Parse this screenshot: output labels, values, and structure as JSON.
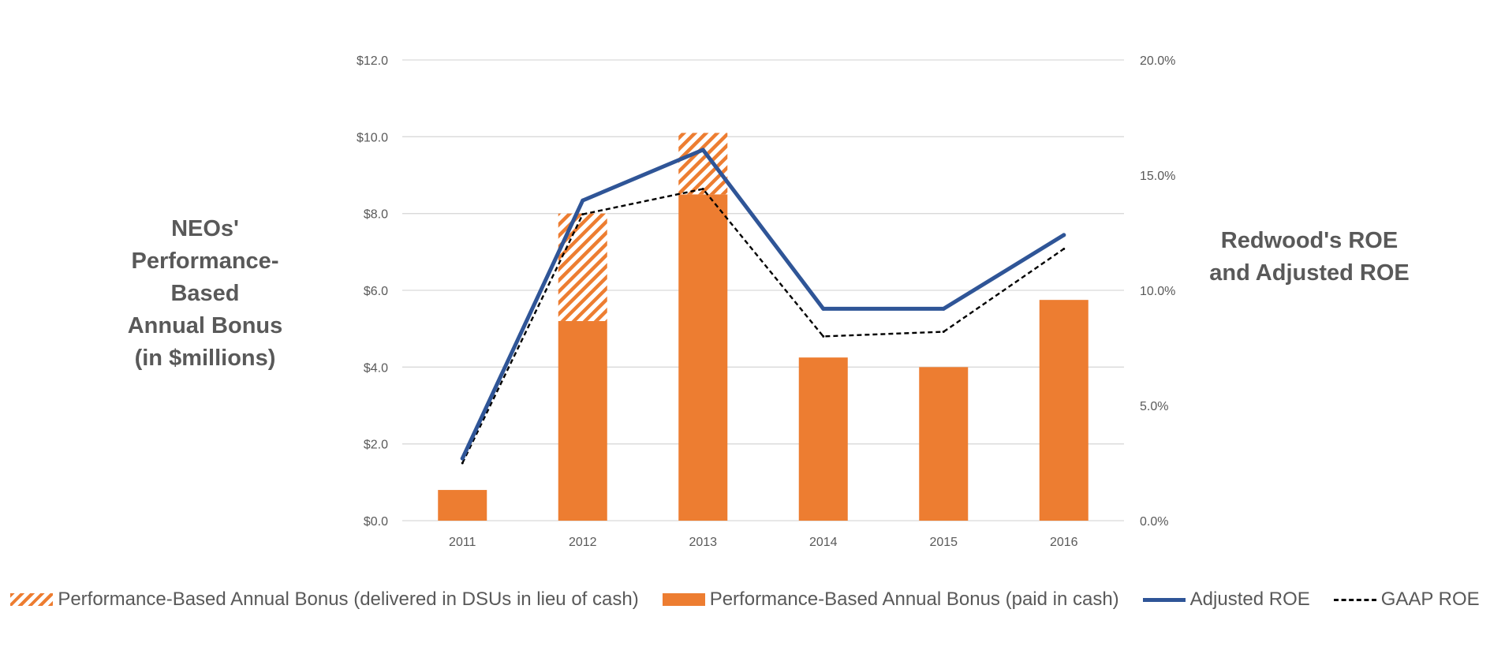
{
  "chart_data": {
    "type": "bar",
    "stacked": true,
    "categories": [
      "2011",
      "2012",
      "2013",
      "2014",
      "2015",
      "2016"
    ],
    "series": [
      {
        "name": "Performance-Based Annual Bonus (paid in cash)",
        "kind": "bar",
        "axis": "left",
        "color": "#ED7D31",
        "values": [
          0.8,
          5.2,
          8.5,
          4.25,
          4.0,
          5.75
        ]
      },
      {
        "name": "Performance-Based Annual Bonus (delivered in DSUs in lieu of cash)",
        "kind": "bar-hatched",
        "axis": "left",
        "color": "#ED7D31",
        "values": [
          0,
          2.8,
          1.6,
          0,
          0,
          0
        ]
      },
      {
        "name": "Adjusted ROE",
        "kind": "line",
        "axis": "right",
        "color": "#2F5597",
        "values": [
          2.7,
          13.9,
          16.1,
          9.2,
          9.2,
          12.4
        ]
      },
      {
        "name": "GAAP ROE",
        "kind": "dashed-line",
        "axis": "right",
        "color": "#000000",
        "values": [
          2.5,
          13.3,
          14.4,
          8.0,
          8.2,
          11.8
        ]
      }
    ],
    "left_axis": {
      "title": "NEOs'\nPerformance-\nBased\nAnnual Bonus\n(in $millions)",
      "ylim": [
        0,
        12
      ],
      "ticks": [
        0,
        2,
        4,
        6,
        8,
        10,
        12
      ],
      "tick_labels": [
        "$0.0",
        "$2.0",
        "$4.0",
        "$6.0",
        "$8.0",
        "$10.0",
        "$12.0"
      ]
    },
    "right_axis": {
      "title": "Redwood's ROE\nand Adjusted ROE",
      "ylim": [
        0,
        20
      ],
      "ticks": [
        0,
        5,
        10,
        15,
        20
      ],
      "tick_labels": [
        "0.0%",
        "5.0%",
        "10.0%",
        "15.0%",
        "20.0%"
      ]
    },
    "legend": {
      "position": "bottom",
      "entries": [
        "Performance-Based Annual Bonus (delivered in DSUs in lieu of cash)",
        "Performance-Based Annual Bonus (paid in cash)",
        "Adjusted ROE",
        "GAAP ROE"
      ]
    },
    "grid": true,
    "colors": {
      "bar": "#ED7D31",
      "adjusted_roe": "#2F5597",
      "gaap_roe": "#000000",
      "grid": "#D9D9D9",
      "text": "#595959"
    }
  }
}
